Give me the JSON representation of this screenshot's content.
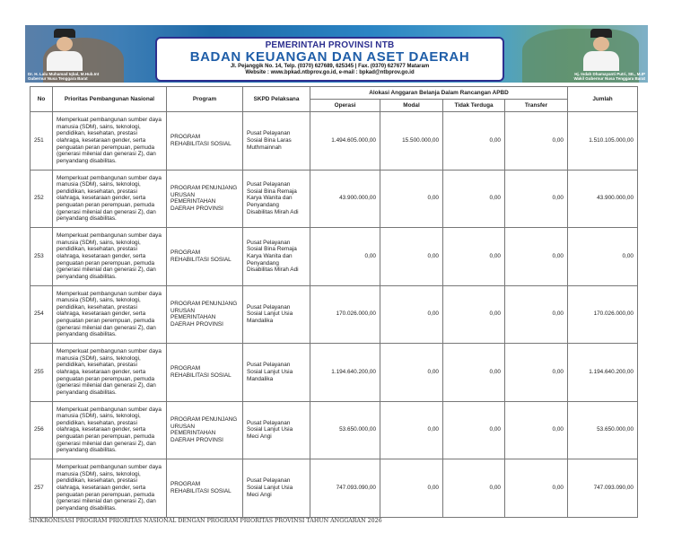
{
  "banner": {
    "line1": "PEMERINTAH PROVINSI NTB",
    "line2": "BADAN KEUANGAN DAN ASET DAERAH",
    "line3": "Jl. Pejanggik No. 14, Telp. (0370) 627689, 625345 | Fax. (0370) 627677 Mataram",
    "line4": "Website : www.bpkad.ntbprov.go.id, e-mail : bpkad@ntbprov.go.id",
    "left_caption_name": "Dr. H. Lalu Muhamad Iqbal, M.Hub.Int",
    "left_caption_title": "Gubernur Nusa Tenggara Barat",
    "right_caption_name": "Hj. Indah Dhamayanti Putri, SE., M.IP",
    "right_caption_title": "Wakil Gubernur Nusa Tenggara Barat"
  },
  "table": {
    "headers": {
      "no": "No",
      "prioritas": "Prioritas Pembangunan Nasional",
      "program": "Program",
      "skpd": "SKPD Pelaksana",
      "alokasi": "Alokasi Anggaran Belanja Dalam Rancangan APBD",
      "operasi": "Operasi",
      "modal": "Modal",
      "tidak_terduga": "Tidak Terduga",
      "transfer": "Transfer",
      "jumlah": "Jumlah"
    },
    "rows": [
      {
        "no": "251",
        "prioritas": "Memperkuat pembangunan sumber daya manusia (SDM), sains, teknologi, pendidikan, kesehatan, prestasi olahraga, kesetaraan gender, serta penguatan peran perempuan, pemuda (generasi milenial dan generasi Z), dan penyandang disabilitas.",
        "program": "PROGRAM REHABILITASI SOSIAL",
        "skpd": "Pusat Pelayanan Sosial Bina Laras Muthmainnah",
        "operasi": "1.494.605.000,00",
        "modal": "15.500.000,00",
        "tidak_terduga": "0,00",
        "transfer": "0,00",
        "jumlah": "1.510.105.000,00"
      },
      {
        "no": "252",
        "prioritas": "Memperkuat pembangunan sumber daya manusia (SDM), sains, teknologi, pendidikan, kesehatan, prestasi olahraga, kesetaraan gender, serta penguatan peran perempuan, pemuda (generasi milenial dan generasi Z), dan penyandang disabilitas.",
        "program": "PROGRAM PENUNJANG URUSAN PEMERINTAHAN DAERAH PROVINSI",
        "skpd": "Pusat Pelayanan Sosial Bina Remaja Karya Wanita dan Penyandang Disabilitas Mirah Adi",
        "operasi": "43.900.000,00",
        "modal": "0,00",
        "tidak_terduga": "0,00",
        "transfer": "0,00",
        "jumlah": "43.900.000,00"
      },
      {
        "no": "253",
        "prioritas": "Memperkuat pembangunan sumber daya manusia (SDM), sains, teknologi, pendidikan, kesehatan, prestasi olahraga, kesetaraan gender, serta penguatan peran perempuan, pemuda (generasi milenial dan generasi Z), dan penyandang disabilitas.",
        "program": "PROGRAM REHABILITASI SOSIAL",
        "skpd": "Pusat Pelayanan Sosial Bina Remaja Karya Wanita dan Penyandang Disabilitas Mirah Adi",
        "operasi": "0,00",
        "modal": "0,00",
        "tidak_terduga": "0,00",
        "transfer": "0,00",
        "jumlah": "0,00"
      },
      {
        "no": "254",
        "prioritas": "Memperkuat pembangunan sumber daya manusia (SDM), sains, teknologi, pendidikan, kesehatan, prestasi olahraga, kesetaraan gender, serta penguatan peran perempuan, pemuda (generasi milenial dan generasi Z), dan penyandang disabilitas.",
        "program": "PROGRAM PENUNJANG URUSAN PEMERINTAHAN DAERAH PROVINSI",
        "skpd": "Pusat Pelayanan Sosial Lanjut Usia Mandalika",
        "operasi": "170.026.000,00",
        "modal": "0,00",
        "tidak_terduga": "0,00",
        "transfer": "0,00",
        "jumlah": "170.026.000,00"
      },
      {
        "no": "255",
        "prioritas": "Memperkuat pembangunan sumber daya manusia (SDM), sains, teknologi, pendidikan, kesehatan, prestasi olahraga, kesetaraan gender, serta penguatan peran perempuan, pemuda (generasi milenial dan generasi Z), dan penyandang disabilitas.",
        "program": "PROGRAM REHABILITASI SOSIAL",
        "skpd": "Pusat Pelayanan Sosial Lanjut Usia Mandalika",
        "operasi": "1.194.640.200,00",
        "modal": "0,00",
        "tidak_terduga": "0,00",
        "transfer": "0,00",
        "jumlah": "1.194.640.200,00"
      },
      {
        "no": "256",
        "prioritas": "Memperkuat pembangunan sumber daya manusia (SDM), sains, teknologi, pendidikan, kesehatan, prestasi olahraga, kesetaraan gender, serta penguatan peran perempuan, pemuda (generasi milenial dan generasi Z), dan penyandang disabilitas.",
        "program": "PROGRAM PENUNJANG URUSAN PEMERINTAHAN DAERAH PROVINSI",
        "skpd": "Pusat Pelayanan Sosial Lanjut Usia Meci Angi",
        "operasi": "53.650.000,00",
        "modal": "0,00",
        "tidak_terduga": "0,00",
        "transfer": "0,00",
        "jumlah": "53.650.000,00"
      },
      {
        "no": "257",
        "prioritas": "Memperkuat pembangunan sumber daya manusia (SDM), sains, teknologi, pendidikan, kesehatan, prestasi olahraga, kesetaraan gender, serta penguatan peran perempuan, pemuda (generasi milenial dan generasi Z), dan penyandang disabilitas.",
        "program": "PROGRAM REHABILITASI SOSIAL",
        "skpd": "Pusat Pelayanan Sosial Lanjut Usia Meci Angi",
        "operasi": "747.093.090,00",
        "modal": "0,00",
        "tidak_terduga": "0,00",
        "transfer": "0,00",
        "jumlah": "747.093.090,00"
      }
    ]
  },
  "footer": "SINKRONISASI PROGRAM PRIORITAS NASIONAL DENGAN PROGRAM PRIORITAS PROVINSI TAHUN ANGGARAN 2026"
}
